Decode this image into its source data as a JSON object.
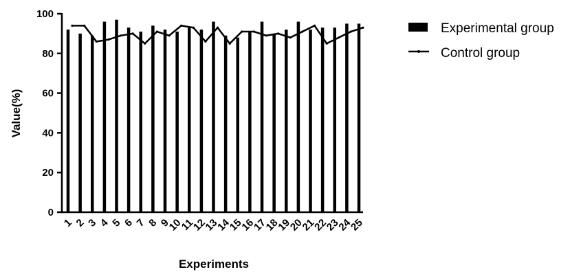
{
  "chart_data": {
    "type": "bar",
    "title": "",
    "xlabel": "Experiments",
    "ylabel": "Value(%)",
    "ylim": [
      0,
      100
    ],
    "yticks": [
      0,
      20,
      40,
      60,
      80,
      100
    ],
    "categories": [
      "1",
      "2",
      "3",
      "4",
      "5",
      "6",
      "7",
      "8",
      "9",
      "10",
      "11",
      "12",
      "13",
      "14",
      "15",
      "16",
      "17",
      "18",
      "19",
      "20",
      "21",
      "22",
      "23",
      "24",
      "25"
    ],
    "grid": false,
    "legend_position": "top-right",
    "series": [
      {
        "name": "Experimental group",
        "type": "bar",
        "color": "#000000",
        "values": [
          92,
          90,
          89,
          96,
          97,
          93,
          91,
          94,
          92,
          91,
          93,
          92,
          96,
          89,
          88,
          91,
          96,
          90,
          92,
          96,
          92,
          93,
          93,
          95,
          95
        ]
      },
      {
        "name": "Control group",
        "type": "line",
        "color": "#000000",
        "values": [
          94,
          94,
          86,
          87,
          89,
          90,
          85,
          91,
          89,
          94,
          93,
          86,
          93,
          85,
          91,
          91,
          89,
          90,
          88,
          91,
          94,
          85,
          88,
          91,
          93
        ]
      }
    ]
  }
}
